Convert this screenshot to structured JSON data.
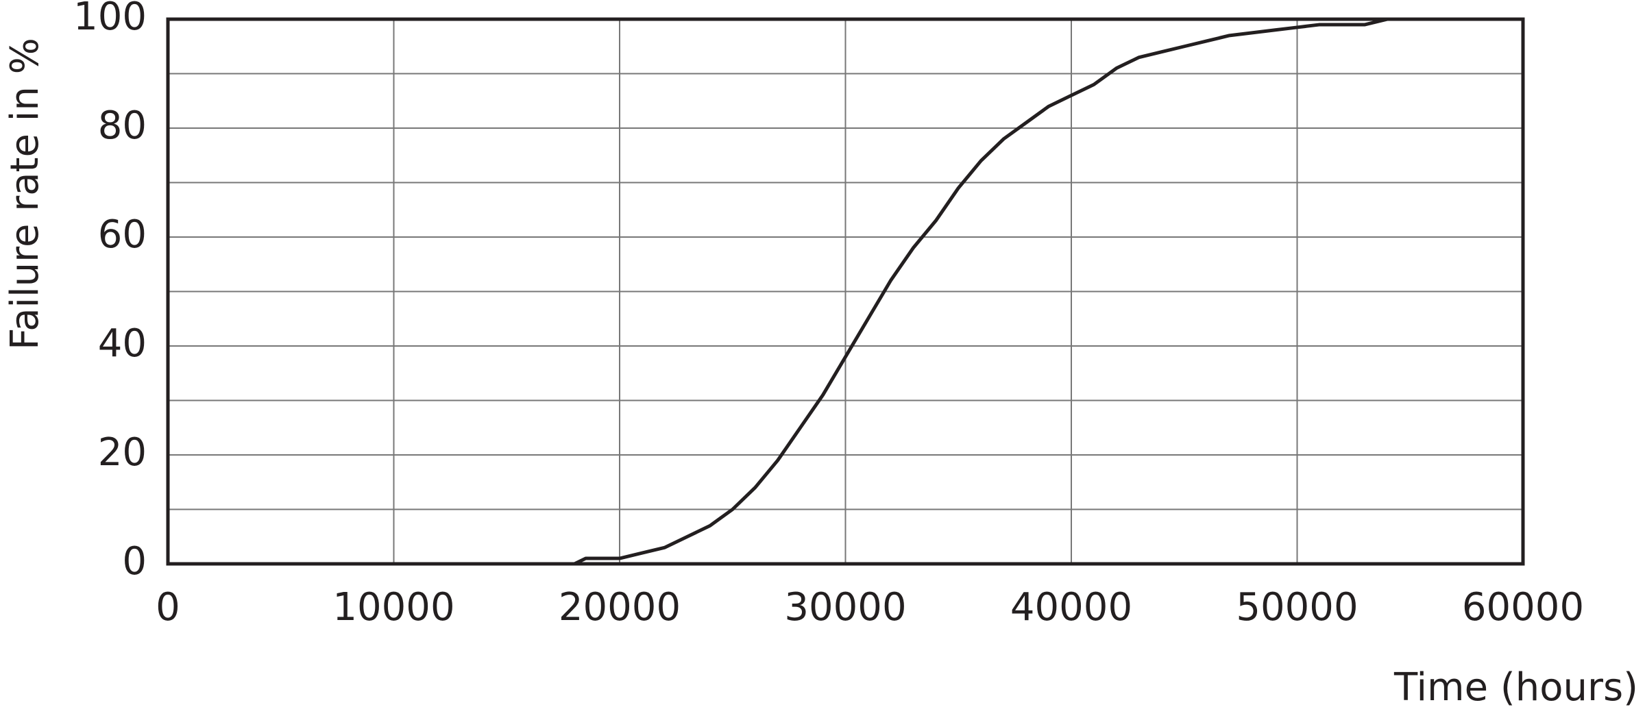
{
  "chart_data": {
    "type": "line",
    "y_label": "Failure rate in %",
    "x_label": "Time (hours)",
    "x": [
      0,
      18000,
      18500,
      20000,
      21000,
      22000,
      23000,
      24000,
      25000,
      26000,
      27000,
      28000,
      29000,
      30000,
      31000,
      32000,
      33000,
      34000,
      35000,
      36000,
      37000,
      38000,
      39000,
      40000,
      41000,
      42000,
      43000,
      44000,
      45000,
      46000,
      47000,
      48000,
      49000,
      50000,
      51000,
      53000,
      54000,
      60000
    ],
    "series": [
      {
        "color": "#231f20",
        "values": [
          0,
          0,
          1,
          1,
          2,
          3,
          5,
          7,
          10,
          14,
          19,
          25,
          31,
          38,
          45,
          52,
          58,
          63,
          69,
          74,
          78,
          81,
          84,
          86,
          88,
          91,
          93,
          94,
          95,
          96,
          97,
          97.5,
          98,
          98.5,
          99,
          99,
          100,
          100
        ]
      }
    ],
    "xlim": [
      0,
      60000
    ],
    "xticks": [
      0,
      10000,
      20000,
      30000,
      40000,
      50000,
      60000
    ],
    "ylim": [
      0,
      100
    ],
    "yticks": [
      0,
      20,
      40,
      60,
      80,
      100
    ],
    "minor_yticks": [
      10,
      30,
      50,
      70,
      90
    ],
    "grid": true
  }
}
